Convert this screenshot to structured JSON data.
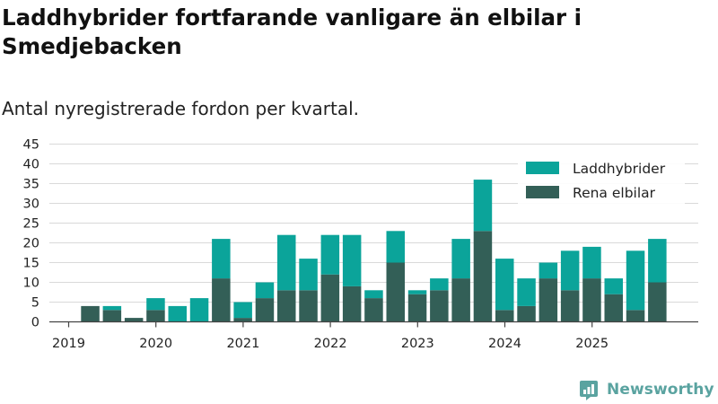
{
  "title": "Laddhybrider fortfarande vanligare än elbilar i Smedjebacken",
  "subtitle": "Antal nyregistrerade fordon per kvartal.",
  "brand": {
    "name": "Newsworthy",
    "icon": "newsworthy-logo-icon",
    "color": "#5aa3a0"
  },
  "chart_data": {
    "type": "bar",
    "stacked": true,
    "x_tick_labels": [
      "2019",
      "2020",
      "2021",
      "2022",
      "2023",
      "2024",
      "2025"
    ],
    "categories": [
      "2019-Q1",
      "2019-Q2",
      "2019-Q3",
      "2019-Q4",
      "2020-Q1",
      "2020-Q2",
      "2020-Q3",
      "2020-Q4",
      "2021-Q1",
      "2021-Q2",
      "2021-Q3",
      "2021-Q4",
      "2022-Q1",
      "2022-Q2",
      "2022-Q3",
      "2022-Q4",
      "2023-Q1",
      "2023-Q2",
      "2023-Q3",
      "2023-Q4",
      "2024-Q1",
      "2024-Q2",
      "2024-Q3",
      "2024-Q4",
      "2025-Q1",
      "2025-Q2",
      "2025-Q3",
      "2025-Q4"
    ],
    "series": [
      {
        "name": "Rena elbilar",
        "color": "#335f57",
        "values": [
          0,
          4,
          3,
          1,
          3,
          0,
          0,
          11,
          1,
          6,
          8,
          8,
          12,
          9,
          6,
          15,
          7,
          8,
          11,
          23,
          3,
          4,
          11,
          8,
          11,
          7,
          3,
          10
        ]
      },
      {
        "name": "Laddhybrider",
        "color": "#0ba49a",
        "values": [
          0,
          0,
          1,
          0,
          3,
          4,
          6,
          10,
          4,
          4,
          14,
          8,
          10,
          13,
          2,
          8,
          1,
          3,
          10,
          13,
          13,
          7,
          4,
          10,
          8,
          4,
          15,
          11
        ]
      }
    ],
    "yticks": [
      0,
      5,
      10,
      15,
      20,
      25,
      30,
      35,
      40,
      45
    ],
    "ylim": [
      0,
      45
    ],
    "legend": {
      "position": "top-right",
      "order": [
        "Laddhybrider",
        "Rena elbilar"
      ]
    },
    "grid": "horizontal"
  }
}
